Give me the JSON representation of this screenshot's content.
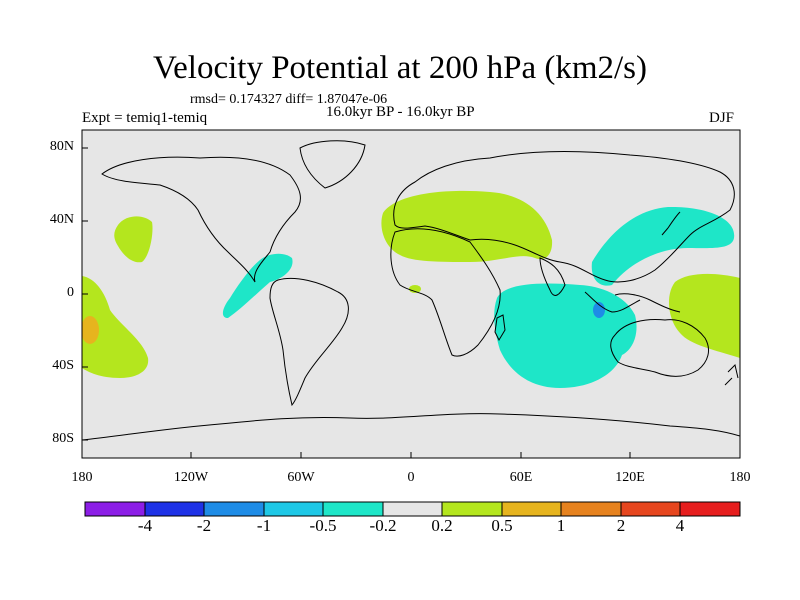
{
  "title": "Velocity Potential at 200 hPa (km2/s)",
  "stats": "rmsd= 0.174327 diff= 1.87047e-06",
  "experiment": "Expt = temiq1-temiq",
  "period": "16.0kyr BP - 16.0kyr BP",
  "season": "DJF",
  "lat_labels": [
    "80N",
    "40N",
    "0",
    "40S",
    "80S"
  ],
  "lon_labels": [
    "180",
    "120W",
    "60W",
    "0",
    "60E",
    "120E",
    "180"
  ],
  "colorbar": {
    "colors": [
      "#8c1ee6",
      "#1e32e6",
      "#1e8ce6",
      "#1ec8e6",
      "#1ee6c8",
      "#e6e6e6",
      "#b4e61e",
      "#e6b41e",
      "#e6821e",
      "#e6461e",
      "#e61e1e"
    ],
    "labels": [
      "-4",
      "-2",
      "-1",
      "-0.5",
      "-0.2",
      "0.2",
      "0.5",
      "1",
      "2",
      "4"
    ]
  },
  "chart_data": {
    "type": "contour-map",
    "title": "Velocity Potential at 200 hPa (km2/s)",
    "projection": "cylindrical-equidistant",
    "lon_range": [
      -180,
      180
    ],
    "lat_range": [
      -90,
      90
    ],
    "levels": [
      -4,
      -2,
      -1,
      -0.5,
      -0.2,
      0.2,
      0.5,
      1,
      2,
      4
    ],
    "regions": [
      {
        "name": "north-africa-asia",
        "class": "0.2 to 0.5",
        "lon_center": 40,
        "lat_center": 37
      },
      {
        "name": "east-asia-west-pacific",
        "class": "-0.5 to -0.2",
        "lon_center": 120,
        "lat_center": 25
      },
      {
        "name": "indian-ocean",
        "class": "-0.5 to -0.2",
        "lon_center": 70,
        "lat_center": -15
      },
      {
        "name": "maritime-continent-core",
        "class": "-1 to -0.5",
        "lon_center": 102,
        "lat_center": -7
      },
      {
        "name": "central-america",
        "class": "-0.5 to -0.2",
        "lon_center": -80,
        "lat_center": 12
      },
      {
        "name": "north-pacific",
        "class": "0.2 to 0.5",
        "lon_center": -145,
        "lat_center": 30
      },
      {
        "name": "south-pacific-east",
        "class": "0.2 to 0.5",
        "lon_center": -170,
        "lat_center": -20
      },
      {
        "name": "south-pacific-east-core",
        "class": "0.5 to 1",
        "lon_center": -175,
        "lat_center": -17
      },
      {
        "name": "west-pacific-south",
        "class": "0.2 to 0.5",
        "lon_center": 165,
        "lat_center": -10
      },
      {
        "name": "gulf-of-guinea",
        "class": "0.2 to 0.5",
        "lon_center": 2,
        "lat_center": 3
      }
    ]
  }
}
